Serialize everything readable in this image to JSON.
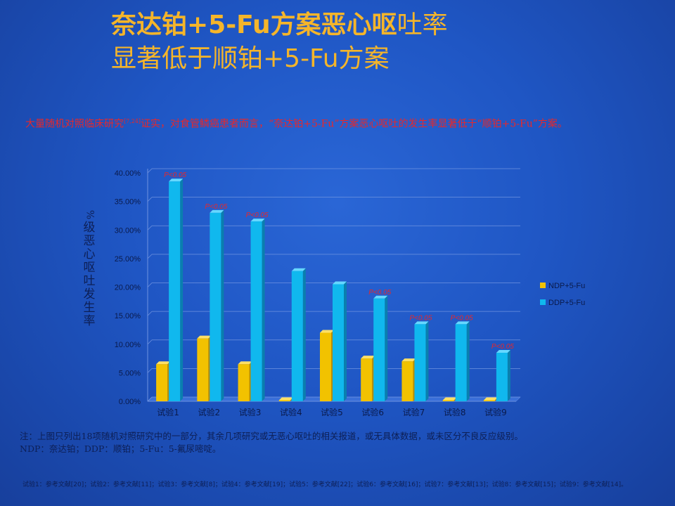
{
  "title": {
    "line1_part1": "奈达铂+5-Fu方案恶心呕",
    "line1_part2": "吐率",
    "line2": "显著低于顺铂+5-Fu方案"
  },
  "intro": {
    "text_before_sup": "大量随机对照临床研究",
    "sup": "[7,24]",
    "text_after_sup": "证实，对食管鳞癌患者而言，“奈达铂+5-Fu”方案恶心呕吐的发生率显著低于“顺铂+5-Fu”方案。"
  },
  "colors": {
    "title": "#f5b52a",
    "ndp": "#f2c200",
    "ddp": "#10b8ee",
    "pvalue": "#e8272a"
  },
  "chart_data": {
    "type": "bar",
    "ylabel": "%级恶心呕吐发生率",
    "categories": [
      "试验1",
      "试验2",
      "试验3",
      "试验4",
      "试验5",
      "试验6",
      "试验7",
      "试验8",
      "试验9"
    ],
    "series": [
      {
        "name": "NDP+5-Fu",
        "values": [
          6.5,
          11.0,
          6.5,
          0,
          12.0,
          7.5,
          7.0,
          0,
          0
        ]
      },
      {
        "name": "DDP+5-Fu",
        "values": [
          38.5,
          33.0,
          31.5,
          22.8,
          20.5,
          18.0,
          13.5,
          13.5,
          8.5
        ]
      }
    ],
    "ylim": [
      0,
      40
    ],
    "yticks": [
      "0.00%",
      "5.00%",
      "10.00%",
      "15.00%",
      "20.00%",
      "25.00%",
      "30.00%",
      "35.00%",
      "40.00%"
    ],
    "annotations": [
      "P<0.05",
      "P<0.05",
      "P<0.05",
      "",
      "",
      "P<0.05",
      "P<0.05",
      "P<0.05",
      "P<0.05"
    ],
    "grid": true,
    "legend_position": "right"
  },
  "note": {
    "line1": "注：上图只列出18项随机对照研究中的一部分，其余几项研究或无恶心呕吐的相关报道，或无具体数据，或未区分不良反应级别。",
    "line2": "NDP：奈达铂；DDP：顺铂；5-Fu：5-氟尿嘧啶。"
  },
  "refs": {
    "text": "试验1：参考文献[20]；试验2：参考文献[11]；试验3：参考文献[8]；试验4：参考文献[19]；试验5：参考文献[22]；试验6：参考文献[16]；试验7：参考文献[13]；试验8：参考文献[15]；试验9：参考文献[14]。"
  }
}
